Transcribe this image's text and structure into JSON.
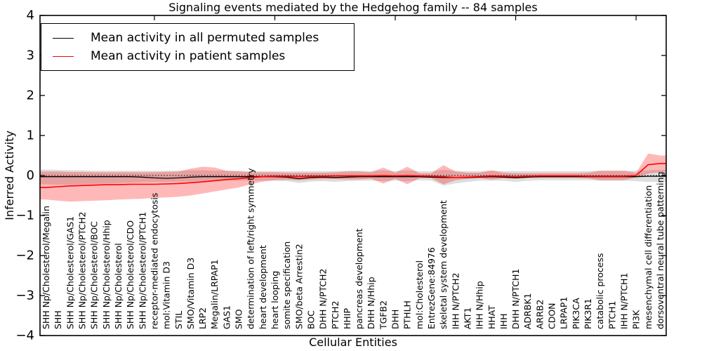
{
  "chart_data": {
    "type": "line",
    "title": "Signaling events mediated by the Hedgehog family -- 84 samples",
    "xlabel": "Cellular Entities",
    "ylabel": "Inferred Activity",
    "ylim": [
      -4,
      4
    ],
    "yticks": [
      4,
      3,
      2,
      1,
      0,
      -1,
      -2,
      -3,
      -4
    ],
    "grid": false,
    "legend_position": "upper left",
    "zero_reference_line": {
      "style": "dotted",
      "color": "#000000",
      "y": 0
    },
    "top_tick_every": 10,
    "categories": [
      "SHH Np/Cholesterol/Megalin",
      "SHH",
      "SHH Np/Cholesterol/GAS1",
      "SHH Np/Cholesterol/PTCH2",
      "SHH Np/Cholesterol/BOC",
      "SHH Np/Cholesterol/Hhip",
      "SHH Np/Cholesterol",
      "SHH Np/Cholesterol/CDO",
      "SHH Np/Cholesterol/PTCH1",
      "receptor-mediated endocytosis",
      "mol:Vitamin D3",
      "STIL",
      "SMO/Vitamin D3",
      "LRP2",
      "Megalin/LRPAP1",
      "GAS1",
      "SMO",
      "determination of left/right symmetry",
      "heart development",
      "heart looping",
      "somite specification",
      "SMO/beta Arrestin2",
      "BOC",
      "DHH N/PTCH2",
      "PTCH2",
      "HHIP",
      "pancreas development",
      "DHH N/Hhip",
      "TGFB2",
      "DHH",
      "PTHLH",
      "mol:Cholesterol",
      "EntrezGene:84976",
      "skeletal system development",
      "IHH N/PTCH2",
      "AKT1",
      "IHH N/Hhip",
      "HHAT",
      "IHH",
      "DHH N/PTCH1",
      "ADRBK1",
      "ARRB2",
      "CDON",
      "LRPAP1",
      "PIK3CA",
      "PIK3R1",
      "catabolic process",
      "PTCH1",
      "IHH N/PTCH1",
      "PI3K",
      "mesenchymal cell differentiation",
      "dorsoventral neural tube patterning"
    ],
    "legend": [
      {
        "label": "Mean activity in all permuted samples",
        "color": "#000000"
      },
      {
        "label": "Mean activity in patient samples",
        "color": "#ff0000"
      }
    ],
    "series": [
      {
        "name": "Mean activity in all permuted samples",
        "color": "#000000",
        "line_width": 1.3,
        "band_color": "rgba(0,0,0,0.13)",
        "values": [
          -0.03,
          -0.03,
          -0.03,
          -0.03,
          -0.03,
          -0.03,
          -0.03,
          -0.03,
          -0.04,
          -0.06,
          -0.07,
          -0.06,
          -0.04,
          -0.03,
          -0.03,
          -0.03,
          -0.03,
          -0.03,
          -0.03,
          -0.03,
          -0.04,
          -0.08,
          -0.05,
          -0.04,
          -0.05,
          -0.04,
          -0.03,
          -0.03,
          -0.03,
          -0.03,
          -0.03,
          -0.03,
          -0.04,
          -0.05,
          -0.05,
          -0.05,
          -0.04,
          -0.03,
          -0.04,
          -0.06,
          -0.04,
          -0.03,
          -0.03,
          -0.03,
          -0.03,
          -0.03,
          -0.03,
          -0.03,
          -0.03,
          -0.03,
          -0.02,
          -0.02
        ],
        "band_hi": [
          0.15,
          0.14,
          0.13,
          0.13,
          0.12,
          0.12,
          0.12,
          0.12,
          0.12,
          0.12,
          0.12,
          0.12,
          0.13,
          0.13,
          0.12,
          0.12,
          0.12,
          0.11,
          0.11,
          0.11,
          0.11,
          0.11,
          0.11,
          0.11,
          0.11,
          0.12,
          0.12,
          0.11,
          0.13,
          0.11,
          0.13,
          0.11,
          0.11,
          0.14,
          0.12,
          0.11,
          0.11,
          0.12,
          0.11,
          0.11,
          0.11,
          0.11,
          0.11,
          0.11,
          0.11,
          0.11,
          0.12,
          0.12,
          0.12,
          0.12,
          0.13,
          0.14
        ],
        "band_lo": [
          -0.22,
          -0.23,
          -0.23,
          -0.22,
          -0.21,
          -0.2,
          -0.19,
          -0.18,
          -0.17,
          -0.16,
          -0.16,
          -0.15,
          -0.15,
          -0.14,
          -0.14,
          -0.13,
          -0.13,
          -0.13,
          -0.13,
          -0.13,
          -0.14,
          -0.19,
          -0.15,
          -0.14,
          -0.16,
          -0.14,
          -0.13,
          -0.13,
          -0.14,
          -0.13,
          -0.14,
          -0.12,
          -0.13,
          -0.25,
          -0.2,
          -0.16,
          -0.13,
          -0.13,
          -0.13,
          -0.16,
          -0.13,
          -0.12,
          -0.12,
          -0.12,
          -0.12,
          -0.12,
          -0.13,
          -0.13,
          -0.13,
          -0.14,
          -0.16,
          -0.16
        ]
      },
      {
        "name": "Mean activity in patient samples",
        "color": "#ff0000",
        "line_width": 1.6,
        "band_color": "rgba(255,0,0,0.28)",
        "values": [
          -0.3,
          -0.28,
          -0.26,
          -0.25,
          -0.24,
          -0.23,
          -0.23,
          -0.22,
          -0.22,
          -0.22,
          -0.21,
          -0.2,
          -0.18,
          -0.16,
          -0.13,
          -0.1,
          -0.08,
          -0.05,
          -0.03,
          -0.02,
          -0.02,
          -0.03,
          -0.02,
          -0.02,
          -0.01,
          -0.01,
          -0.01,
          -0.01,
          0.0,
          -0.01,
          0.0,
          -0.01,
          -0.02,
          -0.03,
          -0.05,
          -0.04,
          -0.03,
          -0.01,
          -0.02,
          -0.03,
          -0.02,
          -0.01,
          -0.01,
          -0.01,
          -0.01,
          -0.02,
          -0.02,
          -0.02,
          -0.02,
          0.0,
          0.27,
          0.3
        ],
        "band_hi": [
          0.1,
          0.1,
          0.09,
          0.09,
          0.08,
          0.08,
          0.08,
          0.08,
          0.08,
          0.08,
          0.09,
          0.1,
          0.17,
          0.22,
          0.2,
          0.12,
          0.1,
          0.08,
          0.08,
          0.08,
          0.07,
          0.07,
          0.07,
          0.07,
          0.08,
          0.1,
          0.1,
          0.08,
          0.2,
          0.07,
          0.22,
          0.06,
          0.06,
          0.26,
          0.1,
          0.07,
          0.07,
          0.13,
          0.07,
          0.06,
          0.06,
          0.06,
          0.06,
          0.06,
          0.06,
          0.07,
          0.12,
          0.12,
          0.12,
          0.07,
          0.55,
          0.5
        ],
        "band_lo": [
          -0.6,
          -0.63,
          -0.65,
          -0.64,
          -0.63,
          -0.62,
          -0.6,
          -0.59,
          -0.58,
          -0.56,
          -0.55,
          -0.53,
          -0.5,
          -0.45,
          -0.4,
          -0.35,
          -0.3,
          -0.22,
          -0.15,
          -0.12,
          -0.11,
          -0.12,
          -0.1,
          -0.09,
          -0.09,
          -0.1,
          -0.1,
          -0.08,
          -0.2,
          -0.08,
          -0.22,
          -0.07,
          -0.07,
          -0.22,
          -0.12,
          -0.08,
          -0.07,
          -0.1,
          -0.07,
          -0.07,
          -0.06,
          -0.06,
          -0.06,
          -0.06,
          -0.06,
          -0.07,
          -0.12,
          -0.12,
          -0.12,
          -0.05,
          0.05,
          0.08
        ]
      }
    ]
  }
}
